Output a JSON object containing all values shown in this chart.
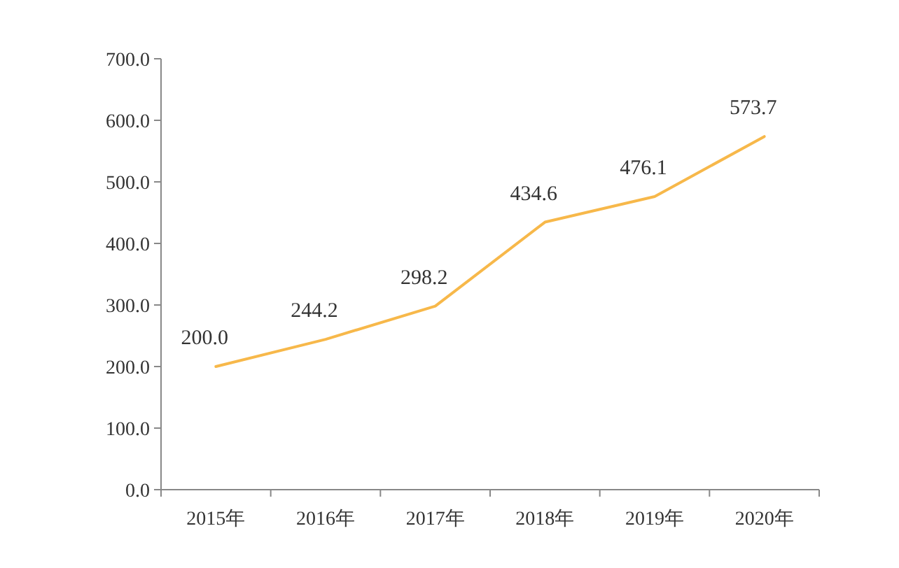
{
  "chart_data": {
    "type": "line",
    "categories": [
      "2015年",
      "2016年",
      "2017年",
      "2018年",
      "2019年",
      "2020年"
    ],
    "series": [
      {
        "color": "#f7b84a",
        "values": [
          200.0,
          244.2,
          298.2,
          434.6,
          476.1,
          573.7
        ],
        "value_labels": [
          "200.0",
          "244.2",
          "298.2",
          "434.6",
          "476.1",
          "573.7"
        ]
      }
    ],
    "ylim": [
      0,
      700
    ],
    "yticks": [
      {
        "value": 0,
        "label": "0.0"
      },
      {
        "value": 100,
        "label": "100.0"
      },
      {
        "value": 200,
        "label": "200.0"
      },
      {
        "value": 300,
        "label": "300.0"
      },
      {
        "value": 400,
        "label": "400.0"
      },
      {
        "value": 500,
        "label": "500.0"
      },
      {
        "value": 600,
        "label": "600.0"
      },
      {
        "value": 700,
        "label": "700.0"
      }
    ]
  }
}
